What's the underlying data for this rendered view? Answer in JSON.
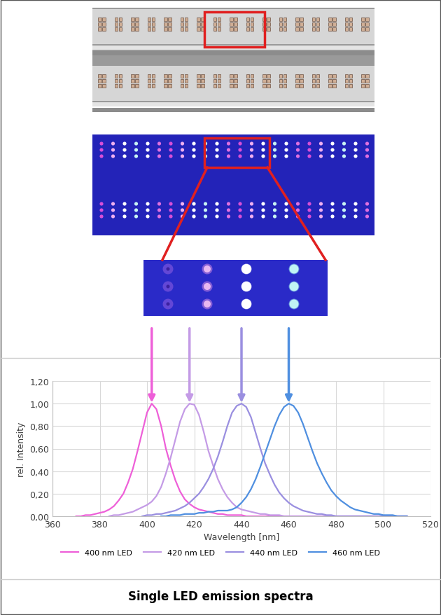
{
  "chart_data": {
    "type": "line",
    "title": "Single LED emission spectra",
    "x_label": "Wavelength [nm]",
    "y_label": "rel. Intensity",
    "x": [
      370,
      372,
      374,
      376,
      378,
      380,
      382,
      384,
      386,
      388,
      390,
      392,
      394,
      396,
      398,
      400,
      402,
      404,
      406,
      408,
      410,
      412,
      414,
      416,
      418,
      420,
      422,
      424,
      426,
      428,
      430,
      432,
      434,
      436,
      438,
      440,
      442,
      444,
      446,
      448,
      450,
      452,
      454,
      456,
      458,
      460,
      462,
      464,
      466,
      468,
      470,
      472,
      474,
      476,
      478,
      480,
      482,
      484,
      486,
      488,
      490,
      492,
      494,
      496,
      498,
      500,
      502,
      504,
      506,
      508,
      510
    ],
    "series": [
      {
        "name": "400 nm LED",
        "color": "#ee5fd8",
        "values": [
          0.0,
          0.0,
          0.01,
          0.01,
          0.02,
          0.03,
          0.04,
          0.06,
          0.09,
          0.14,
          0.2,
          0.3,
          0.42,
          0.58,
          0.75,
          0.92,
          1.0,
          0.95,
          0.8,
          0.6,
          0.45,
          0.32,
          0.22,
          0.15,
          0.11,
          0.08,
          0.06,
          0.05,
          0.04,
          0.03,
          0.02,
          0.02,
          0.01,
          0.01,
          0.01,
          0.01,
          0.0,
          0.0,
          0.0,
          0.0,
          0.0,
          0.0,
          0.0,
          0.0,
          0.0,
          0.0,
          0.0,
          0.0,
          0.0,
          0.0,
          0.0,
          0.0,
          0.0,
          0.0,
          0.0,
          0.0,
          0.0,
          0.0,
          0.0,
          0.0,
          0.0,
          0.0,
          0.0,
          0.0,
          0.0,
          0.0,
          0.0,
          0.0,
          0.0,
          0.0,
          0.0
        ]
      },
      {
        "name": "420 nm LED",
        "color": "#c49be6",
        "values": [
          null,
          null,
          null,
          null,
          null,
          null,
          null,
          0.0,
          0.01,
          0.01,
          0.02,
          0.03,
          0.04,
          0.06,
          0.08,
          0.1,
          0.13,
          0.18,
          0.26,
          0.38,
          0.52,
          0.68,
          0.84,
          0.95,
          1.0,
          0.99,
          0.9,
          0.75,
          0.58,
          0.45,
          0.33,
          0.24,
          0.17,
          0.12,
          0.08,
          0.06,
          0.05,
          0.04,
          0.03,
          0.02,
          0.02,
          0.01,
          0.01,
          0.01,
          0.0,
          0.0,
          0.0,
          0.0,
          0.0,
          0.0,
          0.0,
          0.0,
          0.0,
          0.0,
          0.0,
          0.0,
          0.0,
          0.0,
          0.0,
          0.0,
          0.0,
          0.0,
          0.0,
          0.0,
          0.0,
          0.0,
          0.0,
          0.0,
          0.0,
          0.0,
          0.0
        ]
      },
      {
        "name": "440 nm LED",
        "color": "#9a8fe0",
        "values": [
          null,
          null,
          null,
          null,
          null,
          null,
          null,
          null,
          null,
          null,
          null,
          null,
          null,
          null,
          0.0,
          0.01,
          0.01,
          0.02,
          0.02,
          0.03,
          0.04,
          0.05,
          0.07,
          0.09,
          0.12,
          0.16,
          0.2,
          0.26,
          0.33,
          0.42,
          0.53,
          0.66,
          0.8,
          0.92,
          0.98,
          1.0,
          0.97,
          0.88,
          0.74,
          0.6,
          0.47,
          0.37,
          0.28,
          0.21,
          0.16,
          0.12,
          0.09,
          0.07,
          0.05,
          0.04,
          0.03,
          0.02,
          0.02,
          0.01,
          0.01,
          0.0,
          0.0,
          0.0,
          0.0,
          0.0,
          0.0,
          0.0,
          0.0,
          0.0,
          0.0,
          0.0,
          0.0,
          0.0,
          0.0,
          0.0,
          0.0
        ]
      },
      {
        "name": "460 nm LED",
        "color": "#4f8fe0",
        "values": [
          null,
          null,
          null,
          null,
          null,
          null,
          null,
          null,
          null,
          null,
          null,
          null,
          null,
          null,
          null,
          null,
          null,
          null,
          0.0,
          0.0,
          0.01,
          0.01,
          0.01,
          0.02,
          0.02,
          0.02,
          0.03,
          0.03,
          0.04,
          0.04,
          0.05,
          0.05,
          0.05,
          0.06,
          0.08,
          0.12,
          0.17,
          0.24,
          0.33,
          0.44,
          0.56,
          0.68,
          0.8,
          0.9,
          0.97,
          1.0,
          0.98,
          0.92,
          0.82,
          0.7,
          0.58,
          0.47,
          0.38,
          0.3,
          0.23,
          0.18,
          0.14,
          0.11,
          0.08,
          0.06,
          0.05,
          0.04,
          0.03,
          0.02,
          0.02,
          0.01,
          0.01,
          0.01,
          0.0,
          0.0,
          0.0
        ]
      }
    ],
    "xlim": [
      360,
      520
    ],
    "xticks": [
      360,
      380,
      400,
      420,
      440,
      460,
      480,
      500,
      520
    ],
    "ylim": [
      0,
      1.2
    ],
    "yticks": [
      {
        "value": 0,
        "label": "0,00"
      },
      {
        "value": 0.2,
        "label": "0,20"
      },
      {
        "value": 0.4,
        "label": "0,40"
      },
      {
        "value": 0.6,
        "label": "0,60"
      },
      {
        "value": 0.8,
        "label": "0,80"
      },
      {
        "value": 1.0,
        "label": "1,00"
      },
      {
        "value": 1.2,
        "label": "1,20"
      }
    ],
    "grid": true,
    "legend": "lower center"
  }
}
